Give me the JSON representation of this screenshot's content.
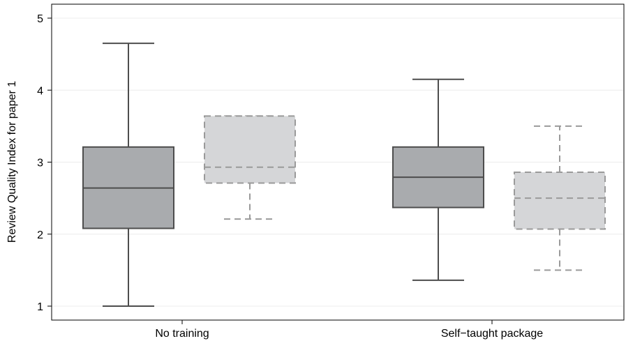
{
  "chart_data": {
    "type": "box",
    "title": "",
    "xlabel": "",
    "ylabel": "Review Quality Index for paper 1",
    "ylim": [
      0.9,
      5.1
    ],
    "yticks": [
      1,
      2,
      3,
      4,
      5
    ],
    "categories": [
      "No training",
      "Self−taught package"
    ],
    "grid": true,
    "series": [
      {
        "style": "solid",
        "fill": "#a9abae",
        "stroke": "#4d4d4d",
        "boxes": [
          {
            "min": 1.0,
            "q1": 2.08,
            "median": 2.64,
            "q3": 3.21,
            "max": 4.65
          },
          {
            "min": 1.36,
            "q1": 2.37,
            "median": 2.79,
            "q3": 3.21,
            "max": 4.15
          }
        ]
      },
      {
        "style": "dashed",
        "fill": "#d5d6d8",
        "stroke": "#9a9a9a",
        "boxes": [
          {
            "min": 2.21,
            "q1": 2.71,
            "median": 2.93,
            "q3": 3.64,
            "max": 3.64
          },
          {
            "min": 1.5,
            "q1": 2.07,
            "median": 2.5,
            "q3": 2.86,
            "max": 3.5
          }
        ]
      }
    ]
  }
}
